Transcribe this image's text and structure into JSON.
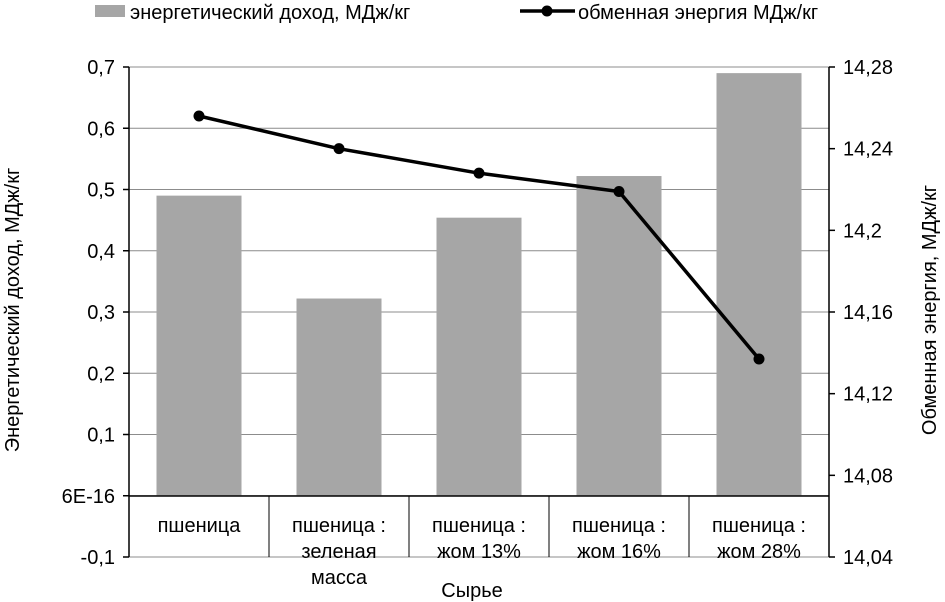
{
  "chart_data": {
    "type": "bar",
    "title": "",
    "xlabel": "Сырье",
    "ylabel": "Энергетический доход, МДж/кг",
    "y2label": "Обменная энергия, МДж/кг",
    "categories": [
      [
        "пшеница"
      ],
      [
        "пшеница :",
        "зеленая",
        "масса"
      ],
      [
        "пшеница :",
        "жом 13%"
      ],
      [
        "пшеница :",
        "жом 16%"
      ],
      [
        "пшеница :",
        "жом 28%"
      ]
    ],
    "series": [
      {
        "name": "энергетический доход, МДж/кг",
        "type": "bar",
        "axis": "left",
        "color": "#a6a6a6",
        "values": [
          0.49,
          0.322,
          0.454,
          0.522,
          0.69
        ]
      },
      {
        "name": "обменная энергия МДж/кг",
        "type": "line",
        "axis": "right",
        "color": "#000000",
        "values": [
          14.256,
          14.24,
          14.228,
          14.219,
          14.137
        ]
      }
    ],
    "ylim": [
      -0.1,
      0.7
    ],
    "yticks": [
      -0.1,
      0.0,
      0.1,
      0.2,
      0.3,
      0.4,
      0.5,
      0.6,
      0.7
    ],
    "ytick_labels": [
      "-0,1",
      "6E-16",
      "0,1",
      "0,2",
      "0,3",
      "0,4",
      "0,5",
      "0,6",
      "0,7"
    ],
    "y2lim": [
      14.04,
      14.28
    ],
    "y2ticks": [
      14.04,
      14.08,
      14.12,
      14.16,
      14.2,
      14.24,
      14.28
    ],
    "y2tick_labels": [
      "14,04",
      "14,08",
      "14,12",
      "14,16",
      "14,2",
      "14,24",
      "14,28"
    ],
    "grid": true,
    "legend_position": "top"
  }
}
